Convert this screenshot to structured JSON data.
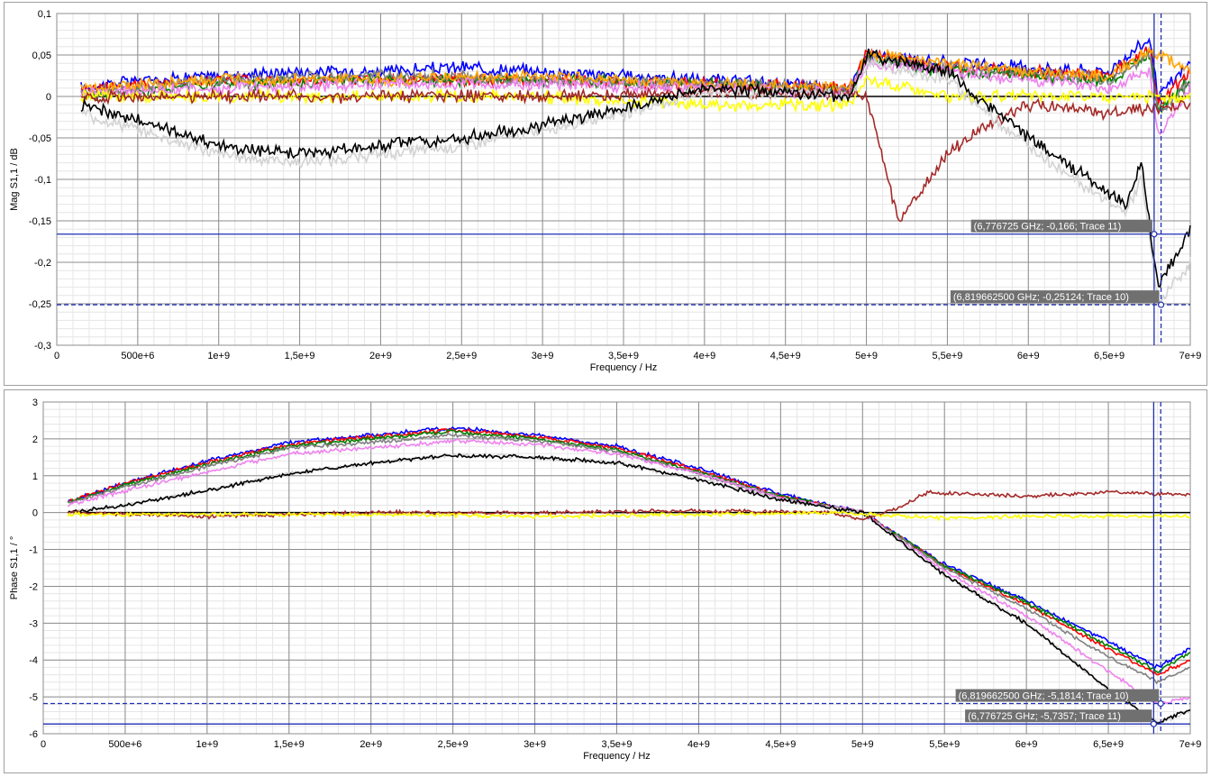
{
  "chart_data": [
    {
      "type": "line",
      "xlabel": "Frequency / Hz",
      "ylabel": "Mag S1,1 / dB",
      "xlim": [
        0,
        7000000000
      ],
      "ylim": [
        -0.3,
        0.1
      ],
      "xticks": [
        0,
        500000000,
        1000000000,
        1500000000,
        2000000000,
        2500000000,
        3000000000,
        3500000000,
        4000000000,
        4500000000,
        5000000000,
        5500000000,
        6000000000,
        6500000000,
        7000000000
      ],
      "xtick_labels": [
        "0",
        "500e+6",
        "1e+9",
        "1,5e+9",
        "2e+9",
        "2,5e+9",
        "3e+9",
        "3,5e+9",
        "4e+9",
        "4,5e+9",
        "5e+9",
        "5,5e+9",
        "6e+9",
        "6,5e+9",
        "7e+9"
      ],
      "yticks": [
        0.1,
        0.05,
        0,
        -0.05,
        -0.1,
        -0.15,
        -0.2,
        -0.25,
        -0.3
      ],
      "ytick_labels": [
        "0,1",
        "0,05",
        "0",
        "-0,05",
        "-0,1",
        "-0,15",
        "-0,2",
        "-0,25",
        "-0,3"
      ],
      "grid": true,
      "series": [
        {
          "color": "#0000ff",
          "x": [
            150000000,
            500000000,
            1000000000,
            1500000000,
            2000000000,
            2500000000,
            3000000000,
            3500000000,
            4000000000,
            4500000000,
            4900000000,
            5000000000,
            5500000000,
            6000000000,
            6500000000,
            6750000000,
            6800000000,
            7000000000
          ],
          "y": [
            0.01,
            0.02,
            0.025,
            0.03,
            0.03,
            0.035,
            0.03,
            0.025,
            0.02,
            0.015,
            0.01,
            0.05,
            0.04,
            0.035,
            0.03,
            0.07,
            0.0,
            0.04
          ]
        },
        {
          "color": "#ff0000",
          "x": [
            150000000,
            1000000000,
            2000000000,
            3000000000,
            4000000000,
            4900000000,
            5000000000,
            5500000000,
            6000000000,
            6500000000,
            6750000000,
            6800000000,
            7000000000
          ],
          "y": [
            0.01,
            0.02,
            0.02,
            0.02,
            0.015,
            0.01,
            0.05,
            0.035,
            0.03,
            0.025,
            0.06,
            -0.01,
            0.03
          ]
        },
        {
          "color": "#008000",
          "x": [
            150000000,
            1000000000,
            2000000000,
            3000000000,
            4000000000,
            4900000000,
            5000000000,
            5500000000,
            6000000000,
            6500000000,
            6750000000,
            6800000000,
            7000000000
          ],
          "y": [
            0.0,
            0.015,
            0.02,
            0.02,
            0.015,
            0.005,
            0.045,
            0.03,
            0.025,
            0.02,
            0.05,
            -0.015,
            0.02
          ]
        },
        {
          "color": "#808080",
          "x": [
            150000000,
            1000000000,
            2000000000,
            3000000000,
            4000000000,
            4900000000,
            5000000000,
            5500000000,
            6000000000,
            6500000000,
            6750000000,
            6800000000,
            7000000000
          ],
          "y": [
            0.005,
            0.02,
            0.025,
            0.02,
            0.015,
            0.01,
            0.045,
            0.035,
            0.03,
            0.02,
            0.05,
            -0.02,
            0.015
          ]
        },
        {
          "color": "#ffa500",
          "x": [
            150000000,
            1000000000,
            2000000000,
            3000000000,
            4000000000,
            4900000000,
            5000000000,
            5500000000,
            6000000000,
            6500000000,
            6750000000,
            7000000000
          ],
          "y": [
            0.01,
            0.02,
            0.02,
            0.025,
            0.015,
            0.01,
            0.05,
            0.04,
            0.03,
            0.025,
            0.055,
            0.03
          ]
        },
        {
          "color": "#ee82ee",
          "x": [
            150000000,
            1000000000,
            2000000000,
            3000000000,
            4000000000,
            4900000000,
            5000000000,
            5500000000,
            6000000000,
            6500000000,
            6750000000,
            6800000000,
            7000000000
          ],
          "y": [
            0.005,
            0.01,
            0.015,
            0.015,
            0.01,
            0.005,
            0.04,
            0.03,
            0.02,
            0.01,
            0.03,
            -0.05,
            0.01
          ]
        },
        {
          "color": "#ffff00",
          "x": [
            150000000,
            1000000000,
            2000000000,
            3000000000,
            4000000000,
            4900000000,
            5000000000,
            5500000000,
            6000000000,
            6500000000,
            7000000000
          ],
          "y": [
            0.0,
            0.0,
            0.0,
            0.0,
            -0.01,
            -0.01,
            0.02,
            0.0,
            0.0,
            0.0,
            0.0
          ]
        },
        {
          "color": "#a52a2a",
          "x": [
            150000000,
            1000000000,
            2000000000,
            3000000000,
            4000000000,
            4900000000,
            5000000000,
            5200000000,
            5500000000,
            5700000000,
            6000000000,
            6500000000,
            7000000000
          ],
          "y": [
            0.0,
            0.0,
            0.0,
            0.0,
            0.005,
            0.005,
            0.0,
            -0.15,
            -0.07,
            -0.04,
            -0.01,
            -0.02,
            -0.01
          ]
        },
        {
          "color": "#d3d3d3",
          "x": [
            150000000,
            500000000,
            1000000000,
            1500000000,
            2000000000,
            2500000000,
            3000000000,
            3500000000,
            4000000000,
            4500000000,
            4900000000,
            5000000000,
            5500000000,
            6000000000,
            6300000000,
            6600000000,
            6700000000,
            6800000000,
            7000000000
          ],
          "y": [
            -0.02,
            -0.04,
            -0.07,
            -0.08,
            -0.07,
            -0.06,
            -0.04,
            -0.02,
            0.005,
            0.005,
            0.0,
            0.04,
            0.02,
            -0.06,
            -0.1,
            -0.14,
            -0.1,
            -0.25,
            -0.2
          ]
        },
        {
          "color": "#000000",
          "x": [
            150000000,
            500000000,
            1000000000,
            1500000000,
            2000000000,
            2500000000,
            3000000000,
            3500000000,
            4000000000,
            4500000000,
            4900000000,
            5000000000,
            5500000000,
            6000000000,
            6300000000,
            6600000000,
            6700000000,
            6800000000,
            7000000000
          ],
          "y": [
            -0.01,
            -0.03,
            -0.06,
            -0.07,
            -0.06,
            -0.05,
            -0.035,
            -0.015,
            0.01,
            0.005,
            0.0,
            0.05,
            0.03,
            -0.05,
            -0.09,
            -0.13,
            -0.08,
            -0.23,
            -0.16
          ]
        }
      ],
      "cursors": [
        {
          "x": 6776725000,
          "y": -0.166,
          "style": "solid",
          "label": "(6,776725 GHz; -0,166; Trace 11)"
        },
        {
          "x": 6819662500,
          "y": -0.25124,
          "style": "dashed",
          "label": "(6,819662500 GHz; -0,25124; Trace 10)"
        }
      ]
    },
    {
      "type": "line",
      "xlabel": "Frequency / Hz",
      "ylabel": "Phase S1,1 / °",
      "xlim": [
        0,
        7000000000
      ],
      "ylim": [
        -6,
        3
      ],
      "xticks": [
        0,
        500000000,
        1000000000,
        1500000000,
        2000000000,
        2500000000,
        3000000000,
        3500000000,
        4000000000,
        4500000000,
        5000000000,
        5500000000,
        6000000000,
        6500000000,
        7000000000
      ],
      "xtick_labels": [
        "0",
        "500e+6",
        "1e+9",
        "1,5e+9",
        "2e+9",
        "2,5e+9",
        "3e+9",
        "3,5e+9",
        "4e+9",
        "4,5e+9",
        "5e+9",
        "5,5e+9",
        "6e+9",
        "6,5e+9",
        "7e+9"
      ],
      "yticks": [
        3,
        2,
        1,
        0,
        -1,
        -2,
        -3,
        -4,
        -5,
        -6
      ],
      "ytick_labels": [
        "3",
        "2",
        "1",
        "0",
        "-1",
        "-2",
        "-3",
        "-4",
        "-5",
        "-6"
      ],
      "grid": true,
      "series": [
        {
          "color": "#0000ff",
          "x": [
            150000000,
            500000000,
            1000000000,
            1500000000,
            2000000000,
            2500000000,
            3000000000,
            3500000000,
            4000000000,
            4500000000,
            5000000000,
            5500000000,
            6000000000,
            6500000000,
            6800000000,
            7000000000
          ],
          "y": [
            0.3,
            0.8,
            1.4,
            1.9,
            2.1,
            2.3,
            2.1,
            1.8,
            1.2,
            0.5,
            0.0,
            -1.4,
            -2.4,
            -3.5,
            -4.2,
            -3.7
          ]
        },
        {
          "color": "#ff0000",
          "x": [
            150000000,
            500000000,
            1000000000,
            1500000000,
            2000000000,
            2500000000,
            3000000000,
            3500000000,
            4000000000,
            4500000000,
            5000000000,
            5500000000,
            6000000000,
            6500000000,
            6800000000,
            7000000000
          ],
          "y": [
            0.3,
            0.8,
            1.35,
            1.85,
            2.05,
            2.25,
            2.05,
            1.75,
            1.15,
            0.45,
            0.0,
            -1.45,
            -2.5,
            -3.7,
            -4.4,
            -4.0
          ]
        },
        {
          "color": "#008000",
          "x": [
            150000000,
            500000000,
            1000000000,
            1500000000,
            2000000000,
            2500000000,
            3000000000,
            3500000000,
            4000000000,
            4500000000,
            5000000000,
            5500000000,
            6000000000,
            6500000000,
            6800000000,
            7000000000
          ],
          "y": [
            0.25,
            0.75,
            1.3,
            1.8,
            2.0,
            2.2,
            2.0,
            1.7,
            1.1,
            0.45,
            0.0,
            -1.45,
            -2.45,
            -3.6,
            -4.3,
            -3.8
          ]
        },
        {
          "color": "#808080",
          "x": [
            150000000,
            500000000,
            1000000000,
            1500000000,
            2000000000,
            2500000000,
            3000000000,
            3500000000,
            4000000000,
            4500000000,
            5000000000,
            5500000000,
            6000000000,
            6500000000,
            6800000000,
            7000000000
          ],
          "y": [
            0.25,
            0.7,
            1.25,
            1.75,
            1.9,
            2.1,
            1.95,
            1.65,
            1.05,
            0.4,
            0.0,
            -1.5,
            -2.6,
            -3.9,
            -4.6,
            -4.2
          ]
        },
        {
          "color": "#ee82ee",
          "x": [
            150000000,
            500000000,
            1000000000,
            1500000000,
            2000000000,
            2500000000,
            3000000000,
            3500000000,
            4000000000,
            4500000000,
            5000000000,
            5500000000,
            6000000000,
            6500000000,
            6800000000,
            7000000000
          ],
          "y": [
            0.2,
            0.6,
            1.1,
            1.6,
            1.75,
            1.95,
            1.85,
            1.6,
            1.05,
            0.4,
            0.0,
            -1.6,
            -2.8,
            -4.3,
            -5.2,
            -5.0
          ]
        },
        {
          "color": "#d3d3d3",
          "x": [
            150000000,
            500000000,
            1000000000,
            1500000000,
            2000000000,
            2500000000,
            3000000000,
            3500000000,
            4000000000,
            4500000000,
            5000000000,
            5500000000,
            6000000000,
            6500000000,
            6800000000,
            7000000000
          ],
          "y": [
            0.0,
            0.2,
            0.6,
            1.05,
            1.35,
            1.55,
            1.5,
            1.35,
            0.9,
            0.35,
            0.0,
            -1.7,
            -3.0,
            -4.8,
            -5.7,
            -5.4
          ]
        },
        {
          "color": "#000000",
          "x": [
            150000000,
            500000000,
            1000000000,
            1500000000,
            2000000000,
            2500000000,
            3000000000,
            3500000000,
            4000000000,
            4500000000,
            5000000000,
            5500000000,
            6000000000,
            6500000000,
            6800000000,
            7000000000
          ],
          "y": [
            0.0,
            0.2,
            0.6,
            1.05,
            1.35,
            1.55,
            1.5,
            1.35,
            0.9,
            0.35,
            0.0,
            -1.7,
            -3.0,
            -4.8,
            -5.7,
            -5.35
          ]
        },
        {
          "color": "#a52a2a",
          "x": [
            150000000,
            1000000000,
            2000000000,
            3000000000,
            4000000000,
            4800000000,
            5000000000,
            5200000000,
            5400000000,
            6000000000,
            6500000000,
            7000000000
          ],
          "y": [
            0.0,
            -0.1,
            0.0,
            0.0,
            0.05,
            0.0,
            -0.2,
            0.1,
            0.55,
            0.45,
            0.55,
            0.5
          ]
        },
        {
          "color": "#ffff00",
          "x": [
            150000000,
            1000000000,
            2000000000,
            3000000000,
            4000000000,
            4800000000,
            5000000000,
            5500000000,
            6000000000,
            6500000000,
            7000000000
          ],
          "y": [
            -0.05,
            -0.05,
            -0.05,
            -0.1,
            -0.05,
            0.0,
            -0.05,
            -0.15,
            -0.1,
            -0.1,
            -0.1
          ]
        }
      ],
      "cursors": [
        {
          "x": 6776725000,
          "y": -5.7357,
          "style": "solid",
          "label": "(6,776725 GHz; -5,7357; Trace 11)"
        },
        {
          "x": 6819662500,
          "y": -5.1814,
          "style": "dashed",
          "label": "(6,819662500 GHz; -5,1814; Trace 10)"
        }
      ]
    }
  ]
}
